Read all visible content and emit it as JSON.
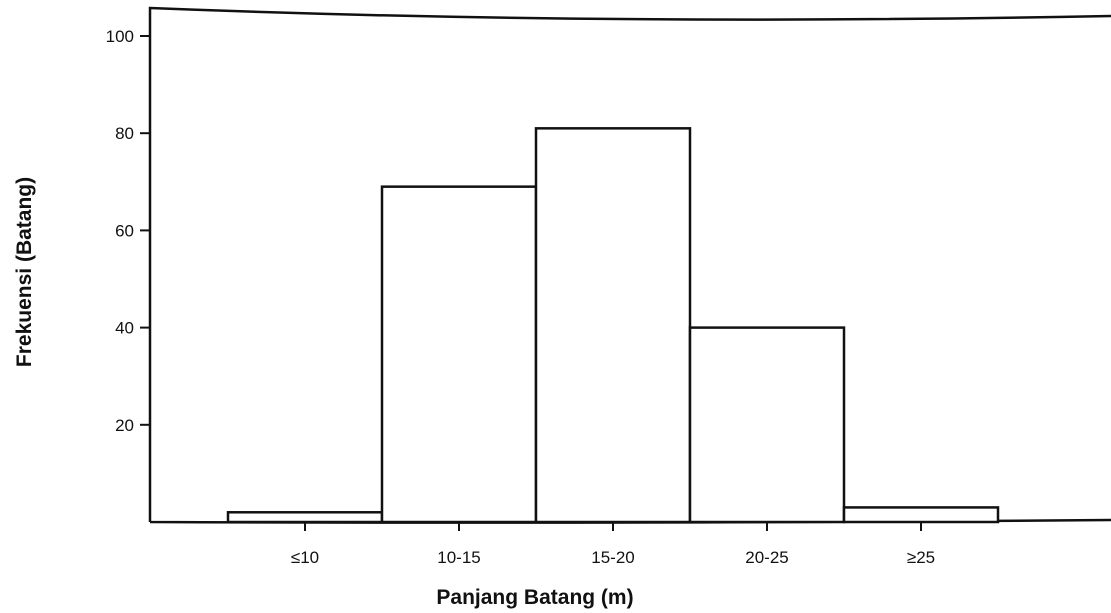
{
  "chart_data": {
    "type": "bar",
    "title": "",
    "xlabel": "Panjang Batang (m)",
    "ylabel": "Frekuensi (Batang)",
    "categories": [
      "≤10",
      "10-15",
      "15-20",
      "20-25",
      "≥25"
    ],
    "values": [
      2,
      69,
      81,
      40,
      3
    ],
    "ylim": [
      0,
      100
    ],
    "yticks": [
      20,
      40,
      60,
      80,
      100
    ],
    "grid": false,
    "legend": "none",
    "colors": {
      "bar_fill": "#ffffff",
      "bar_stroke": "#111111"
    }
  }
}
